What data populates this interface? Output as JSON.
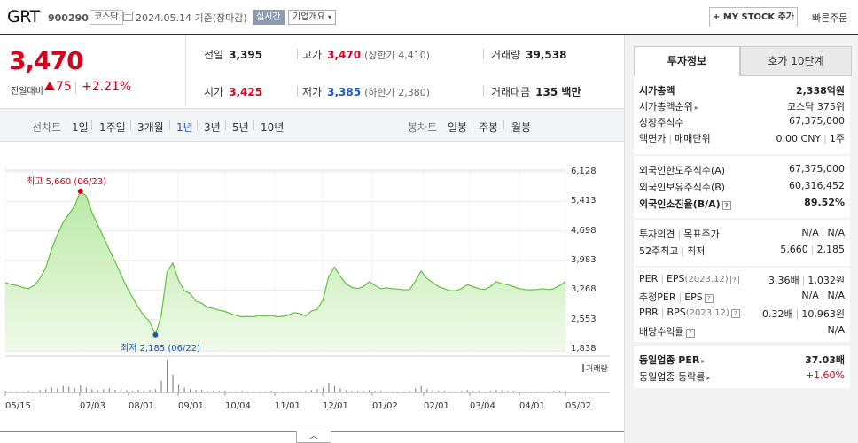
{
  "header": {
    "title": "GRT",
    "code": "900290",
    "market": "코스닥",
    "date": "2024.05.14",
    "basis": "기준(장마감)",
    "realtime": "실시간",
    "corp_summary": "기업개요",
    "my_stock": "MY STOCK 추가",
    "quick_order": "빠른주문"
  },
  "price": {
    "current": "3,470",
    "change_label": "전일대비",
    "change": "75",
    "change_pct": "+2.21%"
  },
  "stats": {
    "prev_label": "전일",
    "prev": "3,395",
    "high_label": "고가",
    "high": "3,470",
    "upper_limit": "(상한가 4,410)",
    "volume_label": "거래량",
    "volume": "39,538",
    "open_label": "시가",
    "open": "3,425",
    "low_label": "저가",
    "low": "3,385",
    "lower_limit": "(하한가 2,380)",
    "amount_label": "거래대금",
    "amount": "135 백만"
  },
  "tabs": {
    "line_chart": "선차트",
    "periods": [
      "1일",
      "1주일",
      "3개월",
      "1년",
      "3년",
      "5년",
      "10년"
    ],
    "selected": "1년",
    "candle_chart": "봉차트",
    "candle_periods": [
      "일봉",
      "주봉",
      "월봉"
    ]
  },
  "chart_data": {
    "type": "area",
    "y_ticks": [
      "6,128",
      "5,413",
      "4,698",
      "3,983",
      "3,268",
      "2,553",
      "1,838"
    ],
    "ylim": [
      1838,
      6128
    ],
    "x_ticks": [
      "05/15",
      "07/03",
      "08/01",
      "09/01",
      "10/04",
      "11/01",
      "12/01",
      "01/02",
      "02/01",
      "03/04",
      "04/01",
      "05/02"
    ],
    "high_label": "최고 5,660 (06/23)",
    "low_label": "최저 2,185 (06/22)",
    "volume_label": "거래량",
    "values": [
      3450,
      3400,
      3380,
      3330,
      3300,
      3380,
      3550,
      3800,
      4250,
      4600,
      4900,
      5100,
      5300,
      5660,
      5550,
      5150,
      4850,
      4550,
      4250,
      3950,
      3650,
      3350,
      3100,
      2850,
      2650,
      2500,
      2185,
      2650,
      3700,
      3920,
      3500,
      3250,
      3180,
      3000,
      2950,
      2850,
      2820,
      2780,
      2750,
      2700,
      2650,
      2620,
      2630,
      2620,
      2650,
      2640,
      2650,
      2620,
      2630,
      2660,
      2720,
      2700,
      2640,
      2760,
      2800,
      3030,
      3600,
      3820,
      3600,
      3420,
      3330,
      3300,
      3350,
      3470,
      3380,
      3300,
      3320,
      3300,
      3290,
      3270,
      3280,
      3480,
      3730,
      3550,
      3450,
      3350,
      3300,
      3250,
      3250,
      3300,
      3400,
      3350,
      3300,
      3280,
      3350,
      3470,
      3420,
      3400,
      3350,
      3300,
      3280,
      3270,
      3280,
      3300,
      3280,
      3300,
      3380,
      3470
    ],
    "volumes": [
      2,
      1,
      1,
      1,
      2,
      1,
      3,
      4,
      6,
      5,
      8,
      7,
      5,
      9,
      6,
      4,
      3,
      4,
      5,
      3,
      4,
      3,
      2,
      3,
      2,
      3,
      4,
      14,
      40,
      22,
      10,
      6,
      4,
      3,
      3,
      2,
      2,
      2,
      2,
      1,
      1,
      2,
      1,
      1,
      1,
      1,
      2,
      1,
      1,
      1,
      1,
      1,
      2,
      3,
      4,
      6,
      12,
      8,
      5,
      3,
      2,
      2,
      2,
      3,
      2,
      2,
      1,
      1,
      1,
      1,
      2,
      5,
      8,
      4,
      3,
      2,
      2,
      1,
      1,
      2,
      3,
      2,
      2,
      1,
      2,
      3,
      2,
      2,
      2,
      1,
      1,
      1,
      1,
      1,
      1,
      2,
      2,
      2
    ]
  },
  "panel": {
    "tab_invest": "투자정보",
    "tab_ask": "호가 10단계",
    "market_cap_label": "시가총액",
    "market_cap": "2,338억원",
    "rank_label": "시가총액순위",
    "rank": "코스닥 375위",
    "shares_label": "상장주식수",
    "shares": "67,375,000",
    "face_label": "액면가",
    "unit_label": "매매단위",
    "face_value": "0.00 CNY",
    "unit_value": "1주",
    "foreign_limit_label": "외국인한도주식수(A)",
    "foreign_limit": "67,375,000",
    "foreign_hold_label": "외국인보유주식수(B)",
    "foreign_hold": "60,316,452",
    "foreign_ratio_label": "외국인소진율(B/A)",
    "foreign_ratio": "89.52%",
    "opinion_label": "투자의견",
    "target_label": "목표주가",
    "opinion": "N/A",
    "target": "N/A",
    "w52_high_label": "52주최고",
    "w52_low_label": "최저",
    "w52_high": "5,660",
    "w52_low": "2,185",
    "per_label": "PER",
    "eps_label": "EPS",
    "eps_year": "(2023.12)",
    "per": "3.36배",
    "eps": "1,032원",
    "eper_label": "추정PER",
    "eeps_label": "EPS",
    "eper": "N/A",
    "eeps": "N/A",
    "pbr_label": "PBR",
    "bps_label": "BPS",
    "bps_year": "(2023.12)",
    "pbr": "0.32배",
    "bps": "10,963원",
    "div_label": "배당수익률",
    "div": "N/A",
    "ind_per_label": "동일업종 PER",
    "ind_per": "37.03배",
    "ind_rate_label": "동일업종 등락률",
    "ind_rate": "+1.60%"
  }
}
